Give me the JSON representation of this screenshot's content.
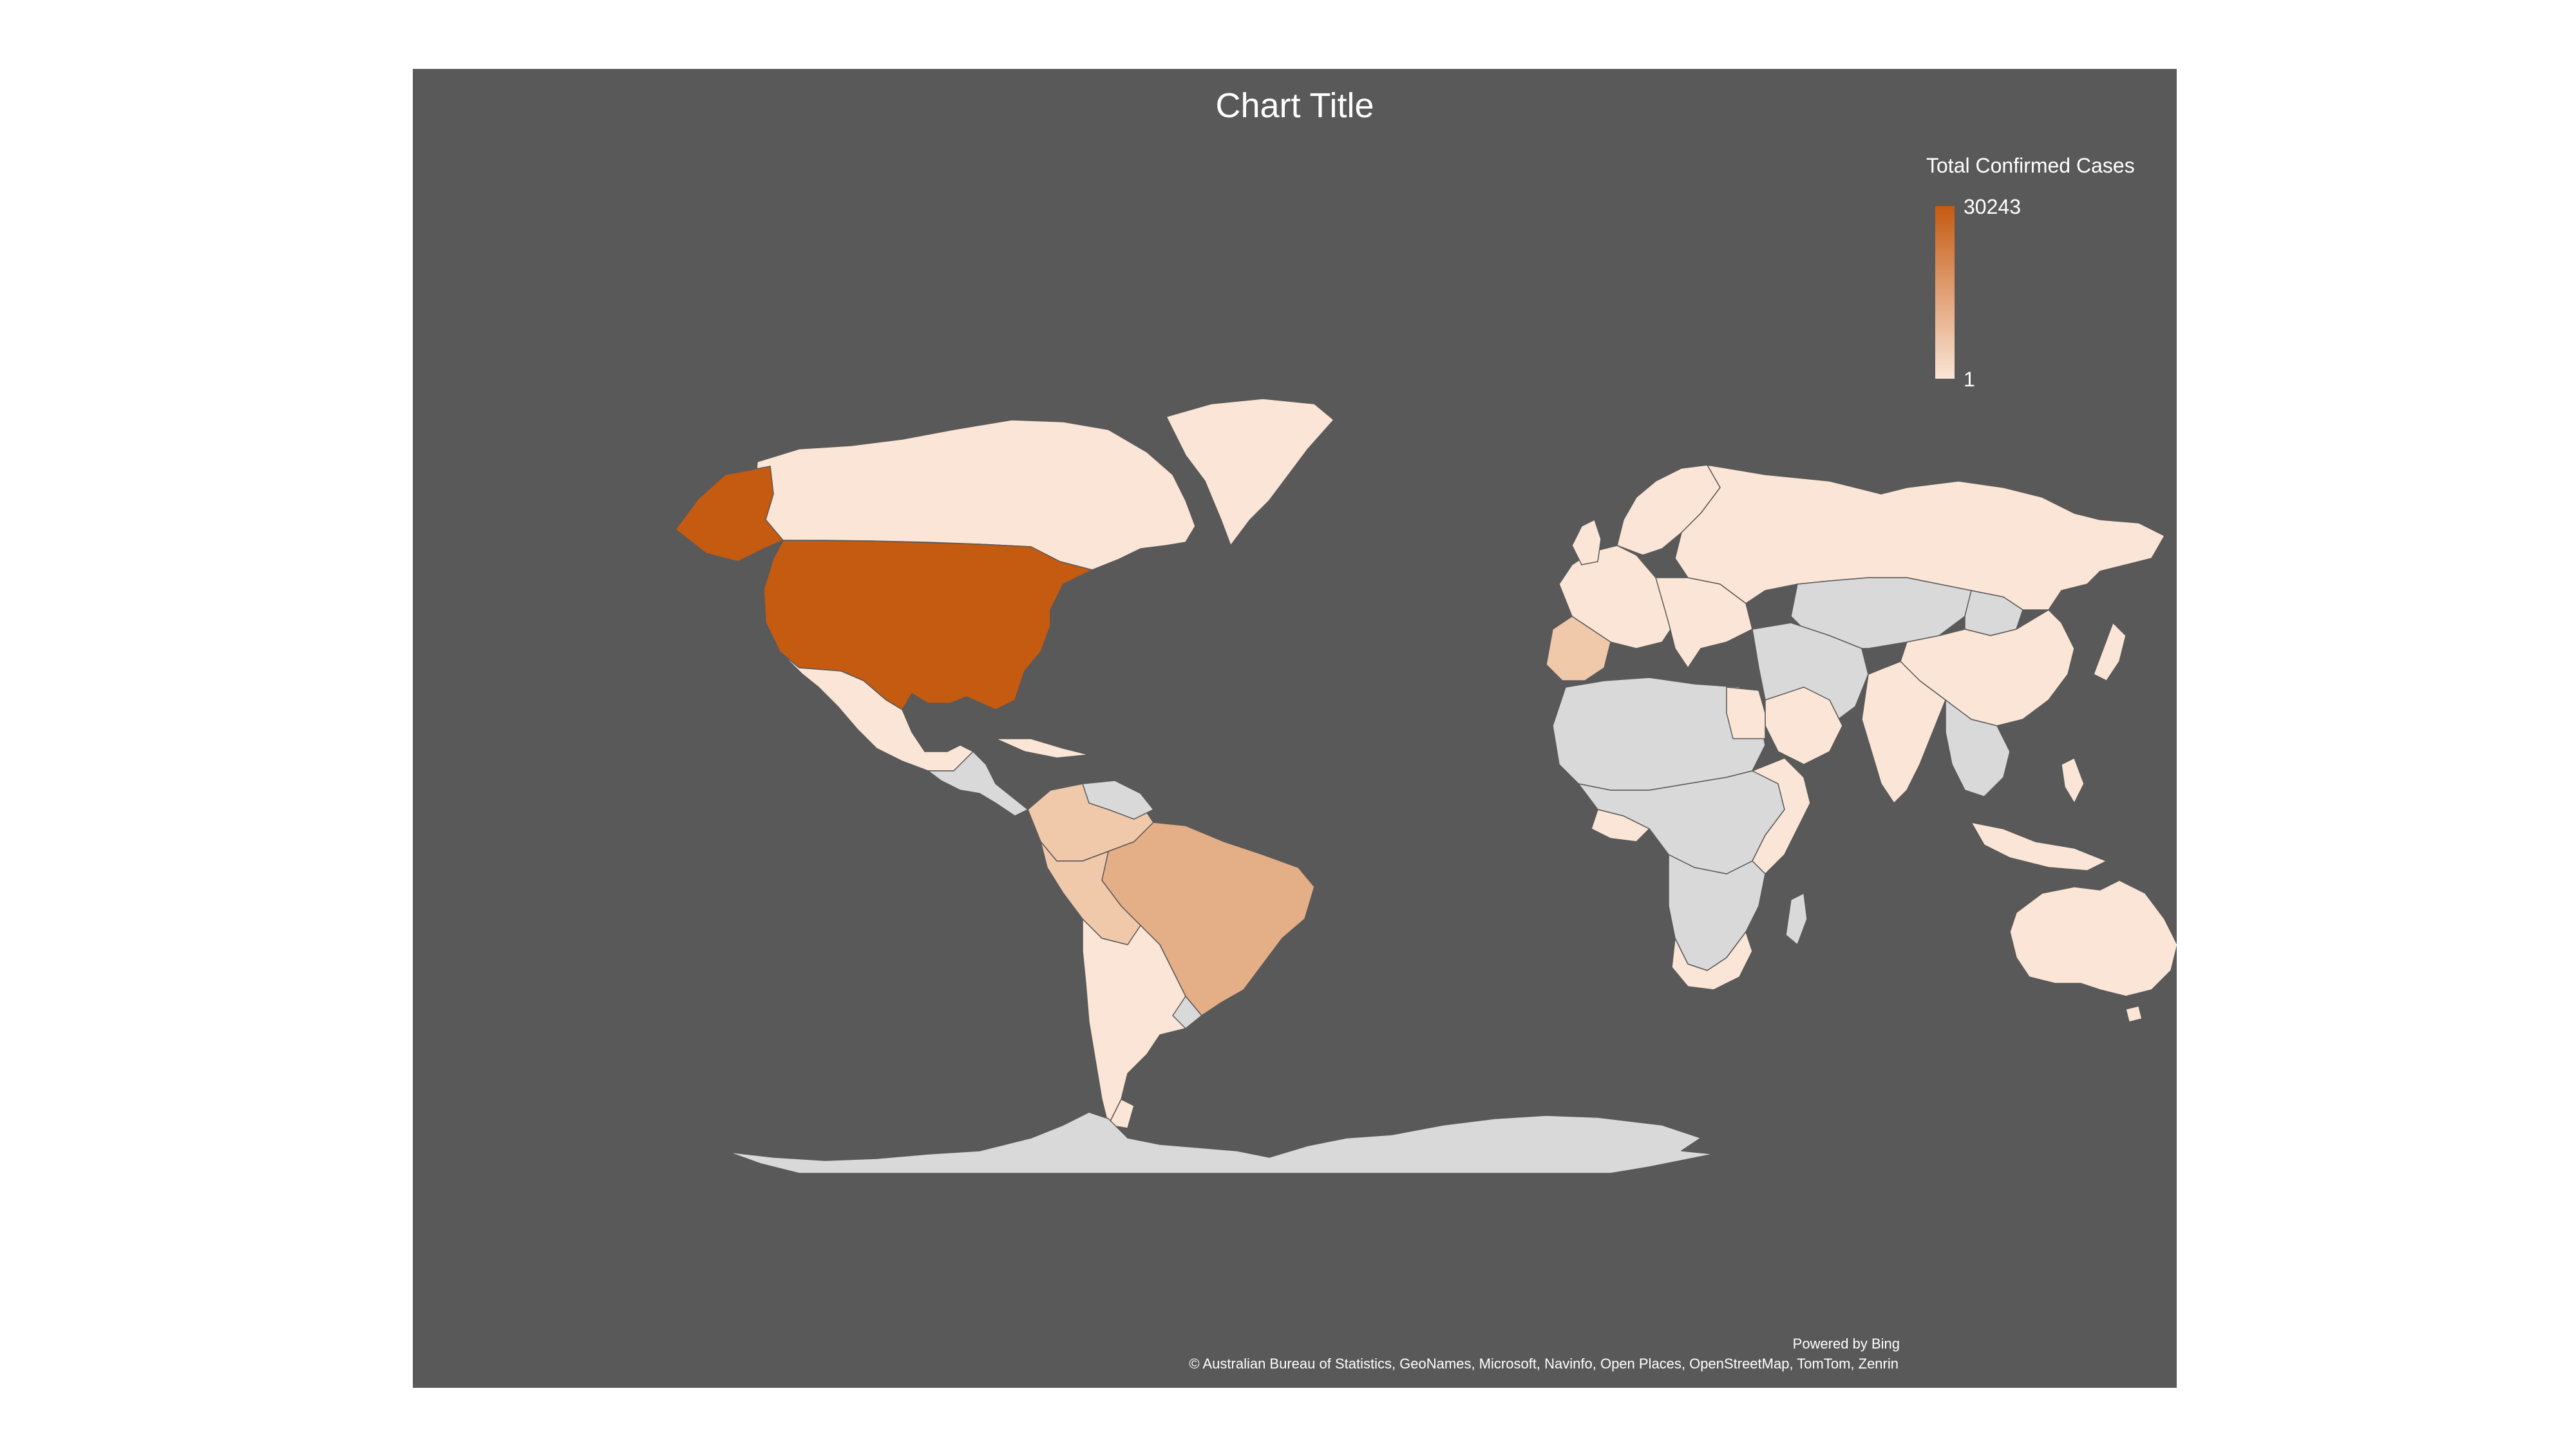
{
  "chart": {
    "title": "Chart Title"
  },
  "legend": {
    "title": "Total Confirmed Cases",
    "max_label": "30243",
    "min_label": "1",
    "color_high": "#c55a11",
    "color_low": "#fbe5d6"
  },
  "footer": {
    "powered_by": "Powered by Bing",
    "attribution": "© Australian Bureau of Statistics, GeoNames, Microsoft, Navinfo, Open Places, OpenStreetMap, TomTom, Zenrin"
  },
  "colors": {
    "background": "#595959",
    "no_data": "#d9d9d9",
    "highest": "#c55a11",
    "high_mid": "#e4ae87",
    "mid": "#f0c8aa",
    "low": "#fbe5d6"
  }
}
